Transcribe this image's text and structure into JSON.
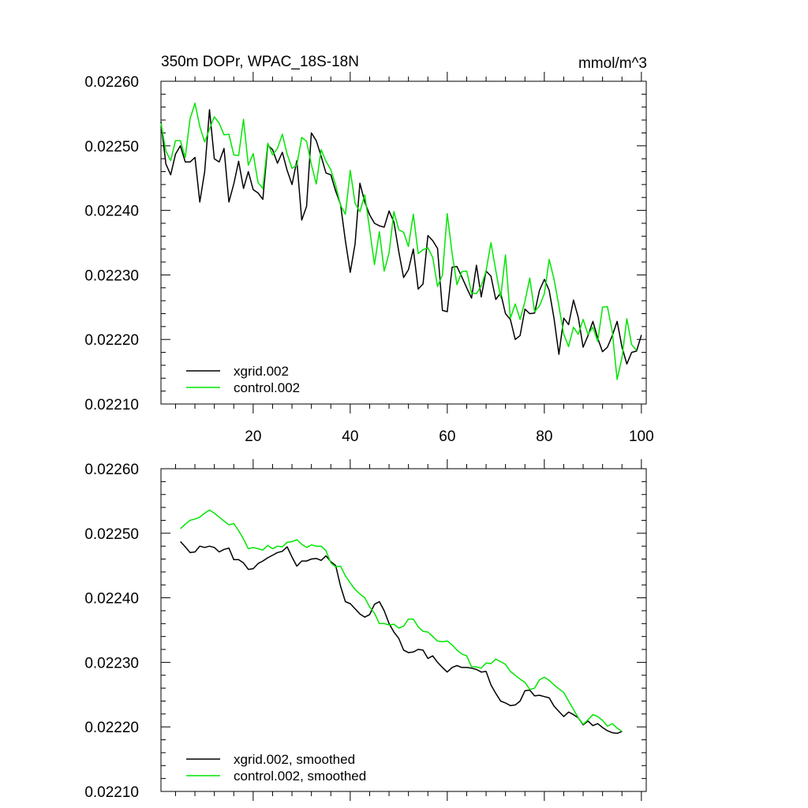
{
  "figure": {
    "title": "350m DOPr, WPAC_18S-18N",
    "units": "mmol/m^3"
  },
  "chart_data": [
    {
      "type": "line",
      "title": "350m DOPr, WPAC_18S-18N",
      "units": "mmol/m^3",
      "xlim": [
        1,
        101
      ],
      "ylim": [
        0.0221,
        0.0226
      ],
      "x_ticks": [
        20,
        40,
        60,
        80,
        100
      ],
      "x_tick_labels": [
        "20",
        "40",
        "60",
        "80",
        "100"
      ],
      "y_ticks": [
        0.0226,
        0.0225,
        0.0224,
        0.0223,
        0.0222,
        0.0221
      ],
      "y_tick_labels": [
        "0.02260",
        "0.02250",
        "0.02240",
        "0.02230",
        "0.02220",
        "0.02210"
      ],
      "legend_position": "bottom-left",
      "series": [
        {
          "name": "xgrid.002",
          "color": "#000000",
          "x_start": 1,
          "values": [
            0.022537,
            0.022472,
            0.022455,
            0.022487,
            0.0225,
            0.022475,
            0.022475,
            0.022482,
            0.022413,
            0.02246,
            0.022556,
            0.02248,
            0.022475,
            0.022496,
            0.022413,
            0.022441,
            0.022476,
            0.022434,
            0.02246,
            0.022432,
            0.022427,
            0.022417,
            0.022501,
            0.022494,
            0.022473,
            0.02249,
            0.022462,
            0.02244,
            0.022477,
            0.022385,
            0.022406,
            0.02252,
            0.022508,
            0.022484,
            0.022458,
            0.022455,
            0.02243,
            0.022409,
            0.022353,
            0.022304,
            0.022348,
            0.022442,
            0.022413,
            0.022393,
            0.02238,
            0.022376,
            0.022374,
            0.022399,
            0.022382,
            0.022336,
            0.022296,
            0.022308,
            0.02234,
            0.022278,
            0.022286,
            0.022361,
            0.022353,
            0.022341,
            0.022245,
            0.022243,
            0.022312,
            0.022313,
            0.022297,
            0.02228,
            0.022264,
            0.022315,
            0.022266,
            0.022306,
            0.022298,
            0.022262,
            0.022272,
            0.02224,
            0.022231,
            0.0222,
            0.022206,
            0.022247,
            0.02224,
            0.022241,
            0.022276,
            0.022293,
            0.022276,
            0.022232,
            0.022177,
            0.022233,
            0.022223,
            0.022261,
            0.022234,
            0.022188,
            0.022206,
            0.022228,
            0.022202,
            0.022181,
            0.022188,
            0.022206,
            0.022228,
            0.022188,
            0.022162,
            0.02218,
            0.022182,
            0.022207
          ]
        },
        {
          "name": "control.002",
          "color": "#00e600",
          "x_start": 1,
          "values": [
            0.022535,
            0.022492,
            0.022477,
            0.022508,
            0.022508,
            0.022482,
            0.022542,
            0.022566,
            0.02253,
            0.022506,
            0.022526,
            0.022545,
            0.022535,
            0.022517,
            0.022518,
            0.022486,
            0.022485,
            0.022541,
            0.02247,
            0.022488,
            0.022443,
            0.022434,
            0.022504,
            0.022486,
            0.022496,
            0.022518,
            0.022487,
            0.022465,
            0.02247,
            0.022513,
            0.022507,
            0.022471,
            0.022441,
            0.022494,
            0.022476,
            0.022463,
            0.022439,
            0.022408,
            0.022394,
            0.022462,
            0.022411,
            0.022398,
            0.022424,
            0.022371,
            0.022316,
            0.022367,
            0.022306,
            0.022334,
            0.022398,
            0.02237,
            0.022366,
            0.022344,
            0.022394,
            0.022333,
            0.022339,
            0.022342,
            0.022327,
            0.022282,
            0.0223,
            0.022395,
            0.022333,
            0.022285,
            0.022305,
            0.022306,
            0.022272,
            0.022271,
            0.022283,
            0.022306,
            0.02235,
            0.022307,
            0.022265,
            0.022331,
            0.022233,
            0.022255,
            0.022231,
            0.022259,
            0.022295,
            0.022243,
            0.022252,
            0.022271,
            0.022324,
            0.022293,
            0.022252,
            0.022208,
            0.022189,
            0.022219,
            0.022208,
            0.022231,
            0.022208,
            0.022219,
            0.022197,
            0.02225,
            0.022251,
            0.022212,
            0.022138,
            0.022172,
            0.022232,
            0.022192,
            0.022183
          ]
        }
      ]
    },
    {
      "type": "line",
      "xlim": [
        1,
        101
      ],
      "ylim": [
        0.0221,
        0.0226
      ],
      "y_ticks": [
        0.0226,
        0.0225,
        0.0224,
        0.0223,
        0.0222,
        0.0221
      ],
      "y_tick_labels": [
        "0.02260",
        "0.02250",
        "0.02240",
        "0.02230",
        "0.02220",
        "0.02210"
      ],
      "legend_position": "bottom-left",
      "series": [
        {
          "name": "xgrid.002, smoothed",
          "color": "#000000",
          "x_start": 5,
          "values": [
            0.022487,
            0.022479,
            0.02247,
            0.022471,
            0.02248,
            0.022478,
            0.02248,
            0.022478,
            0.022471,
            0.022475,
            0.022477,
            0.022459,
            0.022459,
            0.022454,
            0.022444,
            0.022445,
            0.022453,
            0.022457,
            0.022462,
            0.022466,
            0.02247,
            0.022472,
            0.022479,
            0.022463,
            0.022449,
            0.022457,
            0.022457,
            0.02246,
            0.022461,
            0.022458,
            0.022465,
            0.022456,
            0.02245,
            0.022418,
            0.022394,
            0.022391,
            0.022383,
            0.022375,
            0.02237,
            0.022374,
            0.02239,
            0.022394,
            0.02238,
            0.02236,
            0.022347,
            0.022337,
            0.022319,
            0.022315,
            0.022316,
            0.02232,
            0.022319,
            0.022306,
            0.02231,
            0.0223,
            0.022292,
            0.022285,
            0.022292,
            0.022295,
            0.022292,
            0.022292,
            0.022291,
            0.022289,
            0.022285,
            0.022286,
            0.022265,
            0.022252,
            0.02224,
            0.022237,
            0.022233,
            0.022234,
            0.02224,
            0.022256,
            0.022257,
            0.022248,
            0.022249,
            0.022247,
            0.022245,
            0.022232,
            0.022224,
            0.022216,
            0.022223,
            0.022219,
            0.022214,
            0.022203,
            0.022209,
            0.022202,
            0.022205,
            0.022199,
            0.022194,
            0.022191,
            0.02219,
            0.022193
          ]
        },
        {
          "name": "control.002, smoothed",
          "color": "#00e600",
          "x_start": 5,
          "values": [
            0.022507,
            0.022514,
            0.02252,
            0.022522,
            0.022525,
            0.022531,
            0.022536,
            0.022531,
            0.022525,
            0.022519,
            0.022513,
            0.022515,
            0.022504,
            0.022491,
            0.022476,
            0.022478,
            0.022476,
            0.022474,
            0.022481,
            0.022476,
            0.02248,
            0.022479,
            0.022486,
            0.022487,
            0.02249,
            0.022483,
            0.022478,
            0.022482,
            0.02248,
            0.02248,
            0.022473,
            0.022454,
            0.022448,
            0.022449,
            0.022434,
            0.022423,
            0.022413,
            0.022406,
            0.0224,
            0.022386,
            0.022376,
            0.02236,
            0.02236,
            0.022358,
            0.022359,
            0.022353,
            0.022356,
            0.022367,
            0.022367,
            0.022355,
            0.022348,
            0.022347,
            0.02234,
            0.022333,
            0.022332,
            0.022333,
            0.022327,
            0.022319,
            0.022313,
            0.02231,
            0.022293,
            0.022293,
            0.022291,
            0.022299,
            0.022298,
            0.022305,
            0.022301,
            0.022297,
            0.022286,
            0.02228,
            0.022274,
            0.022269,
            0.022258,
            0.02226,
            0.022273,
            0.022277,
            0.022272,
            0.022265,
            0.022259,
            0.022253,
            0.02224,
            0.022227,
            0.022214,
            0.022204,
            0.022211,
            0.022219,
            0.022216,
            0.02221,
            0.022201,
            0.022205,
            0.022198,
            0.022193
          ]
        }
      ]
    }
  ]
}
